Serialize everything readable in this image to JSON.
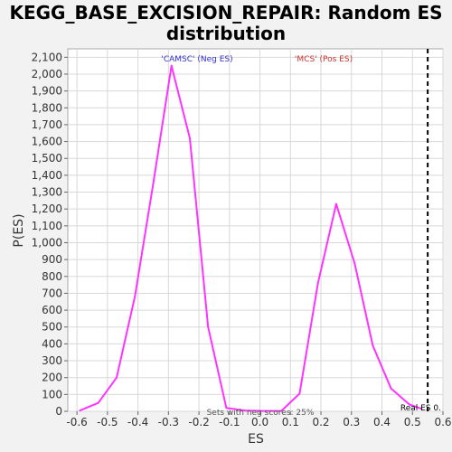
{
  "chart_data": {
    "type": "line",
    "title_line1": "KEGG_BASE_EXCISION_REPAIR: Random ES",
    "title_line2": "distribution",
    "xlabel": "ES",
    "ylabel": "P(ES)",
    "xlim": [
      -0.63,
      0.6
    ],
    "ylim": [
      0,
      2150
    ],
    "x_ticks": [
      -0.6,
      -0.5,
      -0.4,
      -0.3,
      -0.2,
      -0.1,
      0.0,
      0.1,
      0.2,
      0.3,
      0.4,
      0.5,
      0.6
    ],
    "x_tick_labels": [
      "-0.6",
      "-0.5",
      "-0.4",
      "-0.3",
      "-0.2",
      "-0.1",
      "0.0",
      "0.1",
      "0.2",
      "0.3",
      "0.4",
      "0.5",
      "0.6"
    ],
    "y_ticks": [
      0,
      100,
      200,
      300,
      400,
      500,
      600,
      700,
      800,
      900,
      1000,
      1100,
      1200,
      1300,
      1400,
      1500,
      1600,
      1700,
      1800,
      1900,
      2000,
      2100
    ],
    "y_tick_labels": [
      "0",
      "100",
      "200",
      "300",
      "400",
      "500",
      "600",
      "700",
      "800",
      "900",
      "1,000",
      "1,100",
      "1,200",
      "1,300",
      "1,400",
      "1,500",
      "1,600",
      "1,700",
      "1,800",
      "1,900",
      "2,000",
      "2,100"
    ],
    "grid": true,
    "series": [
      {
        "color": "#ff33ff",
        "x": [
          -0.59,
          -0.53,
          -0.47,
          -0.41,
          -0.35,
          -0.29,
          -0.23,
          -0.17,
          -0.11,
          -0.05,
          0.01,
          0.07,
          0.13,
          0.19,
          0.25,
          0.31,
          0.37,
          0.43,
          0.49,
          0.53
        ],
        "y": [
          5,
          50,
          200,
          680,
          1350,
          2050,
          1620,
          500,
          20,
          5,
          2,
          2,
          105,
          760,
          1230,
          880,
          390,
          135,
          40,
          15
        ]
      }
    ],
    "real_es": 0.55,
    "annotations": {
      "neg_label": "'CAMSC' (Neg ES)",
      "pos_label": "'MCS' (Pos ES)",
      "real_es_label": "Real ES 0.",
      "neg_color": "#3333cc",
      "pos_color": "#cc3333",
      "bottom_text": "Sets with neg scores: 25%"
    }
  }
}
